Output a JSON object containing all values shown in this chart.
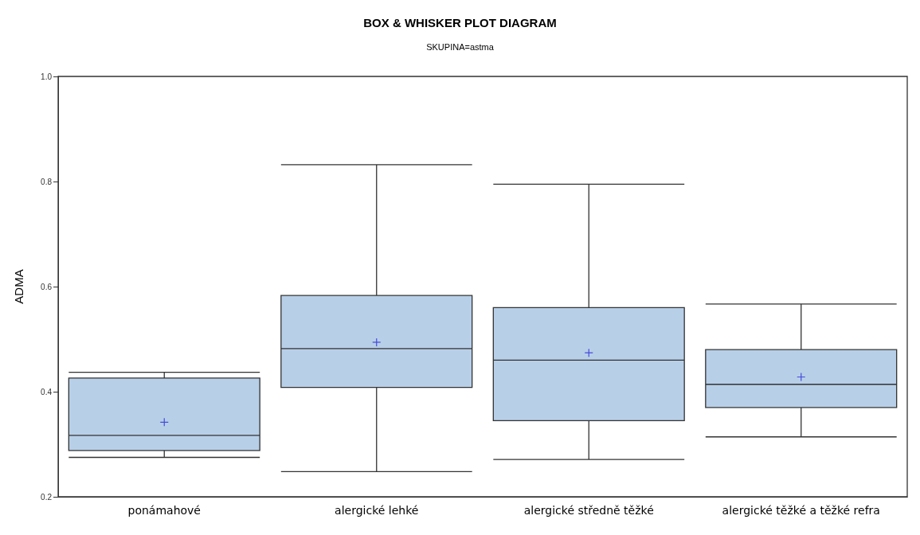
{
  "chart_data": {
    "type": "box",
    "title": "BOX & WHISKER PLOT DIAGRAM",
    "subtitle": "SKUPINA=astma",
    "ylabel": "ADMA",
    "categories": [
      "ponámahové",
      "alergické lehké",
      "alergické středně těžké",
      "alergické těžké a těžké refra"
    ],
    "color": "#b8cfe8",
    "marker": "cross",
    "boxes": [
      {
        "low": 0.275,
        "q1": 0.288,
        "median": 0.317,
        "q3": 0.426,
        "high": 0.437,
        "mean": 0.342
      },
      {
        "low": 0.248,
        "q1": 0.408,
        "median": 0.482,
        "q3": 0.583,
        "high": 0.832,
        "mean": 0.494
      },
      {
        "low": 0.271,
        "q1": 0.345,
        "median": 0.46,
        "q3": 0.56,
        "high": 0.795,
        "mean": 0.474
      },
      {
        "low": 0.314,
        "q1": 0.37,
        "median": 0.414,
        "q3": 0.48,
        "high": 0.567,
        "mean": 0.428
      }
    ],
    "ylim": [
      0.2,
      1.0
    ],
    "yticks": [
      0.2,
      0.4,
      0.6,
      0.8,
      {
        "value": 1,
        "label": "1.0"
      }
    ],
    "grid": false,
    "legend": false
  }
}
